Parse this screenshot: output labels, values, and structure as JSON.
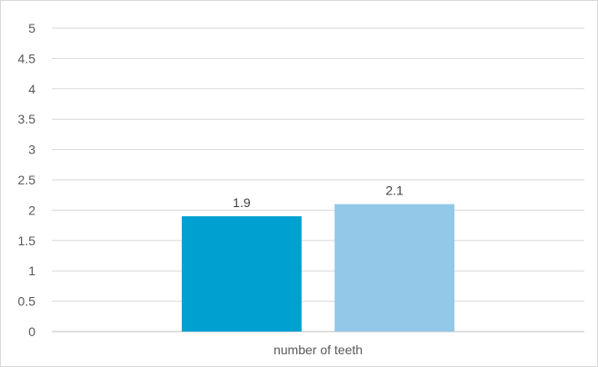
{
  "chart_data": {
    "type": "bar",
    "title": "",
    "xlabel": "",
    "ylabel": "",
    "categories": [
      "number of teeth"
    ],
    "series": [
      {
        "values": [
          1.9
        ],
        "color": "#00a0d1"
      },
      {
        "values": [
          2.1
        ],
        "color": "#93c8e8"
      }
    ],
    "data_labels": [
      "1.9",
      "2.1"
    ],
    "ylim": [
      0,
      5
    ],
    "y_ticks": [
      0,
      0.5,
      1,
      1.5,
      2,
      2.5,
      3,
      3.5,
      4,
      4.5,
      5
    ],
    "y_tick_labels": [
      "0",
      "0.5",
      "1",
      "1.5",
      "2",
      "2.5",
      "3",
      "3.5",
      "4",
      "4.5",
      "5"
    ],
    "grid": true,
    "legend": "none",
    "gridline_color": "#d9d9d9",
    "axis_color": "#bfbfbf"
  }
}
